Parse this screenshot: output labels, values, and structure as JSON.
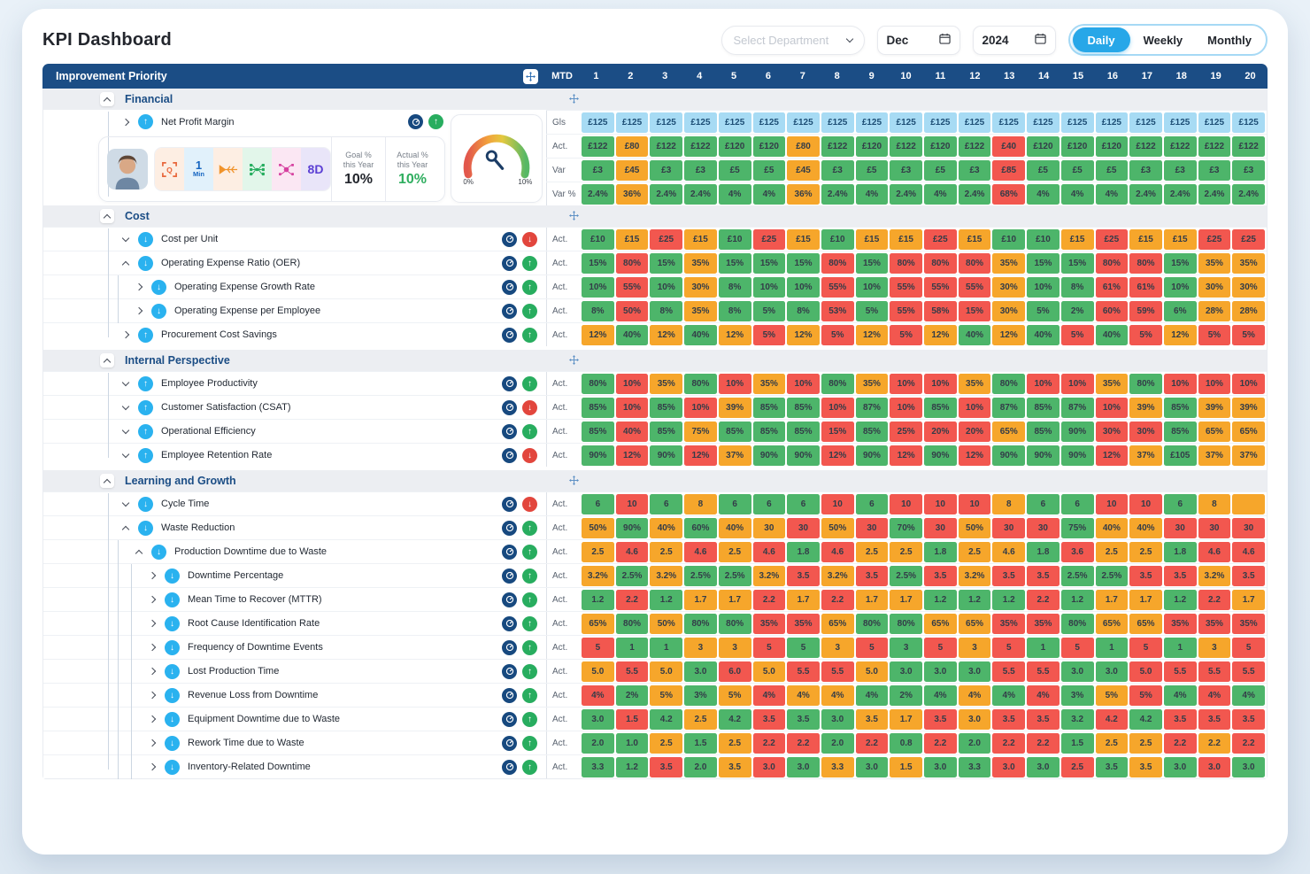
{
  "palette": {
    "green": "#4db56a",
    "orange": "#f6a62b",
    "red": "#f2574f",
    "goal_blue": "#a7dbf4",
    "header_navy": "#1b4d85",
    "accent_blue": "#2ab2ef",
    "status_green": "#28ad5f",
    "status_red": "#e2463d"
  },
  "header": {
    "title": "KPI Dashboard",
    "department_placeholder": "Select Department",
    "month": "Dec",
    "year": "2024",
    "views": [
      "Daily",
      "Weekly",
      "Monthly"
    ],
    "active_view": "Daily"
  },
  "table": {
    "left_header": "Improvement Priority",
    "mtd_label": "MTD",
    "days": [
      "1",
      "2",
      "3",
      "4",
      "5",
      "6",
      "7",
      "8",
      "9",
      "10",
      "11",
      "12",
      "13",
      "14",
      "15",
      "16",
      "17",
      "18",
      "19",
      "20"
    ]
  },
  "financial": {
    "title": "Financial",
    "kpi_label": "Net Profit Margin",
    "trend": "up",
    "status": "up",
    "goal_label_1": "Goal %",
    "goal_label_2": "this Year",
    "goal_value": "10%",
    "actual_label_1": "Actual %",
    "actual_label_2": "this Year",
    "actual_value": "10%",
    "gauge_min": "0%",
    "gauge_max": "10%",
    "chip_min_top": "1",
    "chip_min_bottom": "Min",
    "chip_8d": "8D",
    "tool_icons": [
      "qc-scan-icon",
      "one-min-chip",
      "fishbone-icon",
      "tree-diagram-icon",
      "process-flow-icon",
      "eight-d-chip"
    ],
    "rows": [
      {
        "label": "Gls",
        "values": [
          "£125",
          "£125",
          "£125",
          "£125",
          "£125",
          "£125",
          "£125",
          "£125",
          "£125",
          "£125",
          "£125",
          "£125",
          "£125",
          "£125",
          "£125",
          "£125",
          "£125",
          "£125",
          "£125",
          "£125"
        ],
        "colors": "bbbbbbbbbbbbbbbbbbbb"
      },
      {
        "label": "Act.",
        "values": [
          "£122",
          "£80",
          "£122",
          "£122",
          "£120",
          "£120",
          "£80",
          "£122",
          "£120",
          "£122",
          "£120",
          "£122",
          "£40",
          "£120",
          "£120",
          "£120",
          "£122",
          "£122",
          "£122",
          "£122"
        ],
        "colors": "goggggogggggrggggggg"
      },
      {
        "label": "Var",
        "values": [
          "£3",
          "£45",
          "£3",
          "£3",
          "£5",
          "£5",
          "£45",
          "£3",
          "£5",
          "£3",
          "£5",
          "£3",
          "£85",
          "£5",
          "£5",
          "£5",
          "£3",
          "£3",
          "£3",
          "£3"
        ],
        "colors": "goggggogggggrggggggg"
      },
      {
        "label": "Var %",
        "values": [
          "2.4%",
          "36%",
          "2.4%",
          "2.4%",
          "4%",
          "4%",
          "36%",
          "2.4%",
          "4%",
          "2.4%",
          "4%",
          "2.4%",
          "68%",
          "4%",
          "4%",
          "4%",
          "2.4%",
          "2.4%",
          "2.4%",
          "2.4%"
        ],
        "colors": "goggggogggggrggggggg"
      }
    ]
  },
  "sections": [
    {
      "title": "Cost",
      "rows": [
        {
          "indent": 0,
          "expander": "down",
          "trend": "down",
          "status": "down",
          "label": "Cost per Unit",
          "row_label": "Act.",
          "values": [
            "£10",
            "£15",
            "£25",
            "£15",
            "£10",
            "£25",
            "£15",
            "£10",
            "£15",
            "£15",
            "£25",
            "£15",
            "£10",
            "£10",
            "£15",
            "£25",
            "£15",
            "£15",
            "£25",
            "£25"
          ],
          "colors": "gorogrogooroggoroorr"
        },
        {
          "indent": 0,
          "expander": "up",
          "trend": "down",
          "status": "up",
          "label": "Operating Expense Ratio (OER)",
          "row_label": "Act.",
          "values": [
            "15%",
            "80%",
            "15%",
            "35%",
            "15%",
            "15%",
            "15%",
            "80%",
            "15%",
            "80%",
            "80%",
            "80%",
            "35%",
            "15%",
            "15%",
            "80%",
            "80%",
            "15%",
            "35%",
            "35%"
          ],
          "colors": "grgogggrgrrroggrrgoo"
        },
        {
          "indent": 1,
          "expander": "right",
          "trend": "down",
          "status": "up",
          "label": "Operating Expense Growth Rate",
          "row_label": "Act.",
          "values": [
            "10%",
            "55%",
            "10%",
            "30%",
            "8%",
            "10%",
            "10%",
            "55%",
            "10%",
            "55%",
            "55%",
            "55%",
            "30%",
            "10%",
            "8%",
            "61%",
            "61%",
            "10%",
            "30%",
            "30%"
          ],
          "colors": "grgogggrgrrroggrrgoo"
        },
        {
          "indent": 1,
          "expander": "right",
          "trend": "down",
          "status": "up",
          "label": "Operating Expense per Employee",
          "row_label": "Act.",
          "values": [
            "8%",
            "50%",
            "8%",
            "35%",
            "8%",
            "5%",
            "8%",
            "53%",
            "5%",
            "55%",
            "58%",
            "15%",
            "30%",
            "5%",
            "2%",
            "60%",
            "59%",
            "6%",
            "28%",
            "28%"
          ],
          "colors": "grgogggrgrrroggrrgoo"
        },
        {
          "indent": 0,
          "expander": "right",
          "trend": "up",
          "status": "up",
          "label": "Procurement Cost Savings",
          "row_label": "Act.",
          "values": [
            "12%",
            "40%",
            "12%",
            "40%",
            "12%",
            "5%",
            "12%",
            "5%",
            "12%",
            "5%",
            "12%",
            "40%",
            "12%",
            "40%",
            "5%",
            "40%",
            "5%",
            "12%",
            "5%",
            "5%"
          ],
          "colors": "ogogorororogogrgrorr"
        }
      ]
    },
    {
      "title": "Internal Perspective",
      "rows": [
        {
          "indent": 0,
          "expander": "down",
          "trend": "up",
          "status": "up",
          "label": "Employee Productivity",
          "row_label": "Act.",
          "values": [
            "80%",
            "10%",
            "35%",
            "80%",
            "10%",
            "35%",
            "10%",
            "80%",
            "35%",
            "10%",
            "10%",
            "35%",
            "80%",
            "10%",
            "10%",
            "35%",
            "80%",
            "10%",
            "10%",
            "10%"
          ],
          "colors": "grogrorgorrogrrogrrr"
        },
        {
          "indent": 0,
          "expander": "down",
          "trend": "up",
          "status": "down",
          "label": "Customer Satisfaction (CSAT)",
          "row_label": "Act.",
          "values": [
            "85%",
            "10%",
            "85%",
            "10%",
            "39%",
            "85%",
            "85%",
            "10%",
            "87%",
            "10%",
            "85%",
            "10%",
            "87%",
            "85%",
            "87%",
            "10%",
            "39%",
            "85%",
            "39%",
            "39%"
          ],
          "colors": "grgroggrgrgrgggrogoo"
        },
        {
          "indent": 0,
          "expander": "down",
          "trend": "up",
          "status": "up",
          "label": "Operational Efficiency",
          "row_label": "Act.",
          "values": [
            "85%",
            "40%",
            "85%",
            "75%",
            "85%",
            "85%",
            "85%",
            "15%",
            "85%",
            "25%",
            "20%",
            "20%",
            "65%",
            "85%",
            "90%",
            "30%",
            "30%",
            "85%",
            "65%",
            "65%"
          ],
          "colors": "grgogggrgrrroggrrgoo"
        },
        {
          "indent": 0,
          "expander": "down",
          "trend": "up",
          "status": "down",
          "label": "Employee Retention Rate",
          "row_label": "Act.",
          "values": [
            "90%",
            "12%",
            "90%",
            "12%",
            "37%",
            "90%",
            "90%",
            "12%",
            "90%",
            "12%",
            "90%",
            "12%",
            "90%",
            "90%",
            "90%",
            "12%",
            "37%",
            "£105",
            "37%",
            "37%"
          ],
          "colors": "grgroggrgrgrgggrogoo"
        }
      ]
    },
    {
      "title": "Learning and Growth",
      "rows": [
        {
          "indent": 0,
          "expander": "down",
          "trend": "down",
          "status": "down",
          "label": "Cycle Time",
          "row_label": "Act.",
          "values": [
            "6",
            "10",
            "6",
            "8",
            "6",
            "6",
            "6",
            "10",
            "6",
            "10",
            "10",
            "10",
            "8",
            "6",
            "6",
            "10",
            "10",
            "6",
            "8",
            ""
          ],
          "colors": "grgogggrgrrroggrrgoo"
        },
        {
          "indent": 0,
          "expander": "up",
          "trend": "down",
          "status": "up",
          "label": "Waste Reduction",
          "row_label": "Act.",
          "values": [
            "50%",
            "90%",
            "40%",
            "60%",
            "40%",
            "30",
            "30",
            "50%",
            "30",
            "70%",
            "30",
            "50%",
            "30",
            "30",
            "75%",
            "40%",
            "40%",
            "30",
            "30",
            "30"
          ],
          "colors": "ogogoororgrorrgoorrr"
        },
        {
          "indent": 1,
          "expander": "up",
          "trend": "down",
          "status": "up",
          "label": "Production Downtime due to Waste",
          "row_label": "Act.",
          "values": [
            "2.5",
            "4.6",
            "2.5",
            "4.6",
            "2.5",
            "4.6",
            "1.8",
            "4.6",
            "2.5",
            "2.5",
            "1.8",
            "2.5",
            "4.6",
            "1.8",
            "3.6",
            "2.5",
            "2.5",
            "1.8",
            "4.6",
            "4.6"
          ],
          "colors": "orororgroogoogroogrr"
        },
        {
          "indent": 2,
          "expander": "right",
          "trend": "down",
          "status": "up",
          "label": "Downtime Percentage",
          "row_label": "Act.",
          "values": [
            "3.2%",
            "2.5%",
            "3.2%",
            "2.5%",
            "2.5%",
            "3.2%",
            "3.5",
            "3.2%",
            "3.5",
            "2.5%",
            "3.5",
            "3.2%",
            "3.5",
            "3.5",
            "2.5%",
            "2.5%",
            "3.5",
            "3.5",
            "3.2%",
            "3.5"
          ],
          "colors": "ogoggororgrorrggrror"
        },
        {
          "indent": 2,
          "expander": "right",
          "trend": "down",
          "status": "up",
          "label": "Mean Time to Recover (MTTR)",
          "row_label": "Act.",
          "values": [
            "1.2",
            "2.2",
            "1.2",
            "1.7",
            "1.7",
            "2.2",
            "1.7",
            "2.2",
            "1.7",
            "1.7",
            "1.2",
            "1.2",
            "1.2",
            "2.2",
            "1.2",
            "1.7",
            "1.7",
            "1.2",
            "2.2",
            "1.7"
          ],
          "colors": "grgoororoogggrgoogro"
        },
        {
          "indent": 2,
          "expander": "right",
          "trend": "down",
          "status": "up",
          "label": "Root Cause Identification Rate",
          "row_label": "Act.",
          "values": [
            "65%",
            "80%",
            "50%",
            "80%",
            "80%",
            "35%",
            "35%",
            "65%",
            "80%",
            "80%",
            "65%",
            "65%",
            "35%",
            "35%",
            "80%",
            "65%",
            "65%",
            "35%",
            "35%",
            "35%"
          ],
          "colors": "ogoggrroggoorrgoorrr"
        },
        {
          "indent": 2,
          "expander": "right",
          "trend": "down",
          "status": "up",
          "label": "Frequency of Downtime Events",
          "row_label": "Act.",
          "values": [
            "5",
            "1",
            "1",
            "3",
            "3",
            "5",
            "5",
            "3",
            "5",
            "3",
            "5",
            "3",
            "5",
            "1",
            "5",
            "1",
            "5",
            "1",
            "3",
            "5"
          ],
          "colors": "rggoorgorgrorgrgrgor"
        },
        {
          "indent": 2,
          "expander": "right",
          "trend": "down",
          "status": "up",
          "label": "Lost Production Time",
          "row_label": "Act.",
          "values": [
            "5.0",
            "5.5",
            "5.0",
            "3.0",
            "6.0",
            "5.0",
            "5.5",
            "5.5",
            "5.0",
            "3.0",
            "3.0",
            "3.0",
            "5.5",
            "5.5",
            "3.0",
            "3.0",
            "5.0",
            "5.5",
            "5.5",
            "5.5"
          ],
          "colors": "orogrorrogggrrggrrrr"
        },
        {
          "indent": 2,
          "expander": "right",
          "trend": "down",
          "status": "up",
          "label": "Revenue Loss from Downtime",
          "row_label": "Act.",
          "values": [
            "4%",
            "2%",
            "5%",
            "3%",
            "5%",
            "4%",
            "4%",
            "4%",
            "4%",
            "2%",
            "4%",
            "4%",
            "4%",
            "4%",
            "3%",
            "5%",
            "5%",
            "4%",
            "4%",
            "4%"
          ],
          "colors": "rgogoroogggogrgorgrg"
        },
        {
          "indent": 2,
          "expander": "right",
          "trend": "down",
          "status": "up",
          "label": "Equipment Downtime due to Waste",
          "row_label": "Act.",
          "values": [
            "3.0",
            "1.5",
            "4.2",
            "2.5",
            "4.2",
            "3.5",
            "3.5",
            "3.0",
            "3.5",
            "1.7",
            "3.5",
            "3.0",
            "3.5",
            "3.5",
            "3.2",
            "4.2",
            "4.2",
            "3.5",
            "3.5",
            "3.5"
          ],
          "colors": "grgogrggoororrgrgrrr"
        },
        {
          "indent": 2,
          "expander": "right",
          "trend": "down",
          "status": "up",
          "label": "Rework Time due to Waste",
          "row_label": "Act.",
          "values": [
            "2.0",
            "1.0",
            "2.5",
            "1.5",
            "2.5",
            "2.2",
            "2.2",
            "2.0",
            "2.2",
            "0.8",
            "2.2",
            "2.0",
            "2.2",
            "2.2",
            "1.5",
            "2.5",
            "2.5",
            "2.2",
            "2.2",
            "2.2"
          ],
          "colors": "ggogorrgrgrgrrgooror"
        },
        {
          "indent": 2,
          "expander": "right",
          "trend": "down",
          "status": "up",
          "label": "Inventory-Related Downtime",
          "row_label": "Act.",
          "values": [
            "3.3",
            "1.2",
            "3.5",
            "2.0",
            "3.5",
            "3.0",
            "3.0",
            "3.3",
            "3.0",
            "1.5",
            "3.0",
            "3.3",
            "3.0",
            "3.0",
            "2.5",
            "3.5",
            "3.5",
            "3.0",
            "3.0",
            "3.0"
          ],
          "colors": "ggrgorgogoggrgrgogrg"
        }
      ]
    }
  ]
}
